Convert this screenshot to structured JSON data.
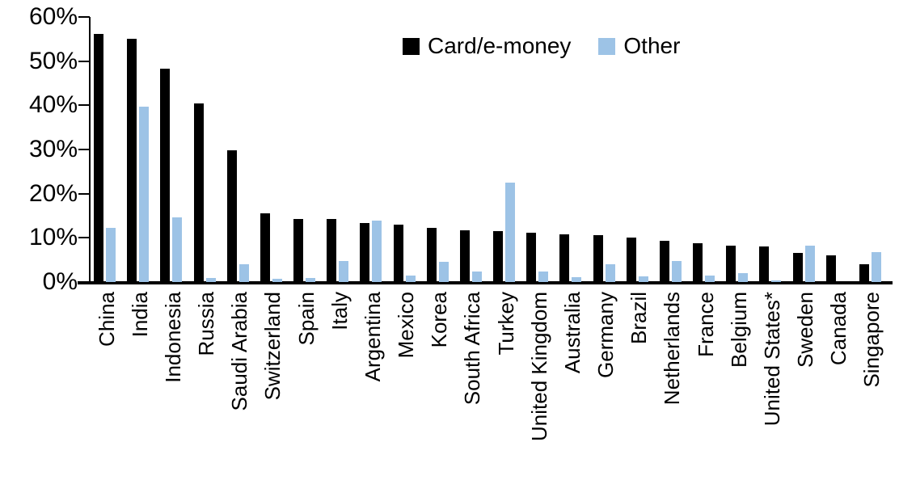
{
  "chart_data": {
    "type": "bar",
    "title": "",
    "xlabel": "",
    "ylabel": "",
    "ylim": [
      0,
      60
    ],
    "y_ticks": [
      "0%",
      "10%",
      "20%",
      "30%",
      "40%",
      "50%",
      "60%"
    ],
    "grid": false,
    "legend_position": "top-center",
    "categories": [
      "China",
      "India",
      "Indonesia",
      "Russia",
      "Saudi Arabia",
      "Switzerland",
      "Spain",
      "Italy",
      "Argentina",
      "Mexico",
      "Korea",
      "South Africa",
      "Turkey",
      "United Kingdom",
      "Australia",
      "Germany",
      "Brazil",
      "Netherlands",
      "France",
      "Belgium",
      "United States*",
      "Sweden",
      "Canada",
      "Singapore"
    ],
    "series": [
      {
        "name": "Card/e-money",
        "color": "#000000",
        "values": [
          56.2,
          55.0,
          48.3,
          40.5,
          29.8,
          15.6,
          14.3,
          14.2,
          13.4,
          13.0,
          12.3,
          11.8,
          11.6,
          11.1,
          10.8,
          10.6,
          10.0,
          9.3,
          8.7,
          8.2,
          8.0,
          6.6,
          6.0,
          4.0
        ]
      },
      {
        "name": "Other",
        "color": "#9DC3E6",
        "values": [
          12.3,
          39.7,
          14.6,
          1.0,
          4.0,
          0.8,
          1.0,
          4.7,
          13.9,
          1.4,
          4.6,
          2.4,
          22.5,
          2.3,
          1.1,
          4.0,
          1.2,
          4.8,
          1.5,
          2.1,
          0.3,
          8.3,
          0.0,
          6.7
        ]
      }
    ]
  }
}
